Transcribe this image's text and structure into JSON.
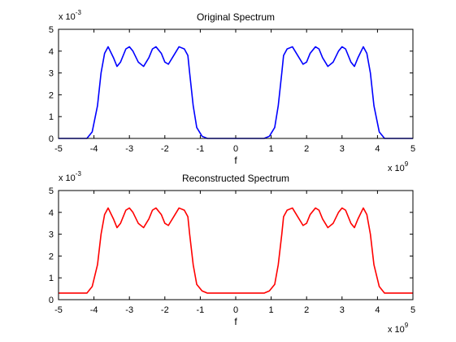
{
  "chart_data": [
    {
      "type": "line",
      "title": "Original Spectrum",
      "xlabel": "f",
      "ylabel": "",
      "x_exponent_label": "x 10",
      "x_exponent": "9",
      "y_exponent_label": "x 10",
      "y_exponent": "-3",
      "xlim": [
        -5000000000.0,
        5000000000.0
      ],
      "ylim": [
        0,
        0.005
      ],
      "x_ticks": [
        -5,
        -4,
        -3,
        -2,
        -1,
        0,
        1,
        2,
        3,
        4,
        5
      ],
      "y_ticks": [
        0,
        1,
        2,
        3,
        4,
        5
      ],
      "grid": false,
      "series": [
        {
          "color": "#0000ff",
          "x": [
            -5000000000.0,
            -4200000000.0,
            -4050000000.0,
            -3900000000.0,
            -3800000000.0,
            -3700000000.0,
            -3600000000.0,
            -3450000000.0,
            -3350000000.0,
            -3250000000.0,
            -3100000000.0,
            -3000000000.0,
            -2900000000.0,
            -2750000000.0,
            -2600000000.0,
            -2450000000.0,
            -2350000000.0,
            -2250000000.0,
            -2100000000.0,
            -2000000000.0,
            -1900000000.0,
            -1750000000.0,
            -1600000000.0,
            -1450000000.0,
            -1350000000.0,
            -1300000000.0,
            -1200000000.0,
            -1100000000.0,
            -950000000.0,
            -800000000.0,
            800000000.0,
            950000000.0,
            1100000000.0,
            1200000000.0,
            1300000000.0,
            1350000000.0,
            1450000000.0,
            1600000000.0,
            1750000000.0,
            1900000000.0,
            2000000000.0,
            2100000000.0,
            2250000000.0,
            2350000000.0,
            2450000000.0,
            2600000000.0,
            2750000000.0,
            2900000000.0,
            3000000000.0,
            3100000000.0,
            3250000000.0,
            3350000000.0,
            3450000000.0,
            3600000000.0,
            3700000000.0,
            3800000000.0,
            3900000000.0,
            4050000000.0,
            4200000000.0,
            5000000000.0
          ],
          "y": [
            0,
            0,
            0.0003,
            0.0015,
            0.003,
            0.0039,
            0.0042,
            0.0037,
            0.0033,
            0.0035,
            0.0041,
            0.0042,
            0.004,
            0.0035,
            0.0033,
            0.0037,
            0.0041,
            0.0042,
            0.0039,
            0.0035,
            0.0034,
            0.0038,
            0.0042,
            0.0041,
            0.0038,
            0.003,
            0.0015,
            0.0005,
            0.0001,
            0,
            0,
            0.0001,
            0.0005,
            0.0015,
            0.003,
            0.0038,
            0.0041,
            0.0042,
            0.0038,
            0.0034,
            0.0035,
            0.0039,
            0.0042,
            0.0041,
            0.0037,
            0.0033,
            0.0035,
            0.004,
            0.0042,
            0.0041,
            0.0035,
            0.0033,
            0.0037,
            0.0042,
            0.0039,
            0.003,
            0.0015,
            0.0003,
            0,
            0
          ]
        }
      ]
    },
    {
      "type": "line",
      "title": "Reconstructed Spectrum",
      "xlabel": "f",
      "ylabel": "",
      "x_exponent_label": "x 10",
      "x_exponent": "9",
      "y_exponent_label": "x 10",
      "y_exponent": "-3",
      "xlim": [
        -5000000000.0,
        5000000000.0
      ],
      "ylim": [
        0,
        0.005
      ],
      "x_ticks": [
        -5,
        -4,
        -3,
        -2,
        -1,
        0,
        1,
        2,
        3,
        4,
        5
      ],
      "y_ticks": [
        0,
        1,
        2,
        3,
        4,
        5
      ],
      "grid": false,
      "series": [
        {
          "color": "#ff0000",
          "x": [
            -5000000000.0,
            -4200000000.0,
            -4050000000.0,
            -3900000000.0,
            -3800000000.0,
            -3700000000.0,
            -3600000000.0,
            -3450000000.0,
            -3350000000.0,
            -3250000000.0,
            -3100000000.0,
            -3000000000.0,
            -2900000000.0,
            -2750000000.0,
            -2600000000.0,
            -2450000000.0,
            -2350000000.0,
            -2250000000.0,
            -2100000000.0,
            -2000000000.0,
            -1900000000.0,
            -1750000000.0,
            -1600000000.0,
            -1450000000.0,
            -1350000000.0,
            -1300000000.0,
            -1200000000.0,
            -1100000000.0,
            -950000000.0,
            -800000000.0,
            800000000.0,
            950000000.0,
            1100000000.0,
            1200000000.0,
            1300000000.0,
            1350000000.0,
            1450000000.0,
            1600000000.0,
            1750000000.0,
            1900000000.0,
            2000000000.0,
            2100000000.0,
            2250000000.0,
            2350000000.0,
            2450000000.0,
            2600000000.0,
            2750000000.0,
            2900000000.0,
            3000000000.0,
            3100000000.0,
            3250000000.0,
            3350000000.0,
            3450000000.0,
            3600000000.0,
            3700000000.0,
            3800000000.0,
            3900000000.0,
            4050000000.0,
            4200000000.0,
            5000000000.0
          ],
          "y": [
            0.0003,
            0.0003,
            0.0006,
            0.0016,
            0.003,
            0.0039,
            0.0042,
            0.0037,
            0.0033,
            0.0035,
            0.0041,
            0.0042,
            0.004,
            0.0035,
            0.0033,
            0.0037,
            0.0041,
            0.0042,
            0.0039,
            0.0035,
            0.0034,
            0.0038,
            0.0042,
            0.0041,
            0.0038,
            0.003,
            0.0016,
            0.0007,
            0.0004,
            0.0003,
            0.0003,
            0.0004,
            0.0007,
            0.0016,
            0.003,
            0.0038,
            0.0041,
            0.0042,
            0.0038,
            0.0034,
            0.0035,
            0.0039,
            0.0042,
            0.0041,
            0.0037,
            0.0033,
            0.0035,
            0.004,
            0.0042,
            0.0041,
            0.0035,
            0.0033,
            0.0037,
            0.0042,
            0.0039,
            0.003,
            0.0016,
            0.0006,
            0.0003,
            0.0003
          ]
        }
      ]
    }
  ]
}
